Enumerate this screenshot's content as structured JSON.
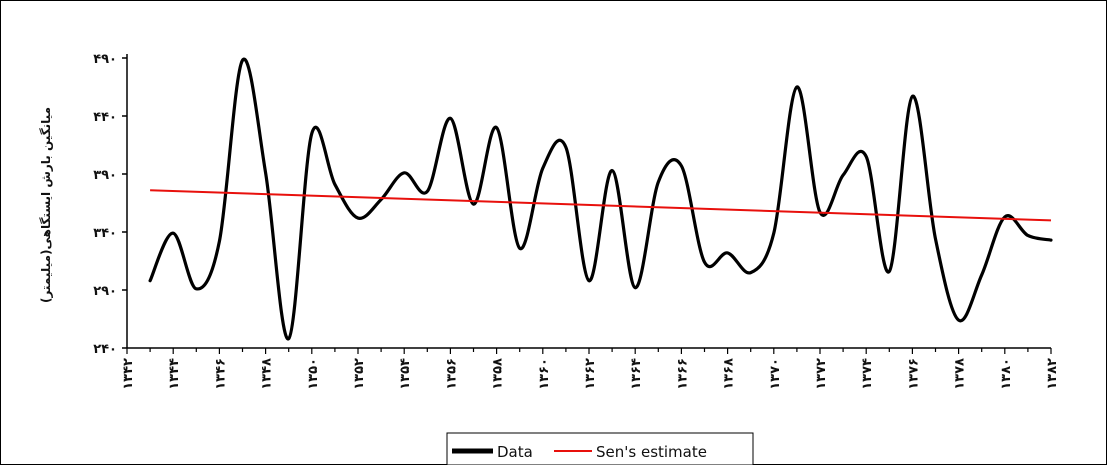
{
  "chart_data": {
    "type": "line",
    "ylabel": "میانگین بارش ایستگاهی(میلیمتر)",
    "ylim": [
      240,
      490
    ],
    "y_ticks": [
      "۲۴۰",
      "۲۹۰",
      "۳۴۰",
      "۳۹۰",
      "۴۴۰",
      "۴۹۰"
    ],
    "y_tick_values": [
      240,
      290,
      340,
      390,
      440,
      490
    ],
    "xlim": [
      1342,
      1382
    ],
    "x_ticks": [
      "۱۳۴۲",
      "۱۳۴۴",
      "۱۳۴۶",
      "۱۳۴۸",
      "۱۳۵۰",
      "۱۳۵۲",
      "۱۳۵۴",
      "۱۳۵۶",
      "۱۳۵۸",
      "۱۳۶۰",
      "۱۳۶۲",
      "۱۳۶۴",
      "۱۳۶۶",
      "۱۳۶۸",
      "۱۳۷۰",
      "۱۳۷۲",
      "۱۳۷۴",
      "۱۳۷۶",
      "۱۳۷۸",
      "۱۳۸۰",
      "۱۳۸۲"
    ],
    "x_tick_values": [
      1342,
      1344,
      1346,
      1348,
      1350,
      1352,
      1354,
      1356,
      1358,
      1360,
      1362,
      1364,
      1366,
      1368,
      1370,
      1372,
      1374,
      1376,
      1378,
      1380,
      1382
    ],
    "grid": false,
    "legend_position": "bottom-center",
    "series": [
      {
        "name": "Data",
        "color": "#000000",
        "x": [
          1343,
          1344,
          1345,
          1346,
          1347,
          1348,
          1349,
          1350,
          1351,
          1352,
          1353,
          1354,
          1355,
          1356,
          1357,
          1358,
          1359,
          1360,
          1361,
          1362,
          1363,
          1364,
          1365,
          1366,
          1367,
          1368,
          1369,
          1370,
          1371,
          1372,
          1373,
          1374,
          1375,
          1376,
          1377,
          1378,
          1379,
          1380,
          1381,
          1382
        ],
        "y": [
          298,
          339,
          291,
          332,
          488,
          391,
          248,
          425,
          381,
          352,
          368,
          391,
          375,
          438,
          364,
          430,
          326,
          395,
          413,
          298,
          393,
          292,
          383,
          397,
          314,
          322,
          305,
          339,
          465,
          357,
          389,
          405,
          306,
          457,
          334,
          264,
          303,
          353,
          337,
          333
        ]
      },
      {
        "name": "Sen's estimate",
        "color": "#e8100c",
        "x": [
          1343,
          1382
        ],
        "y": [
          376,
          350
        ]
      }
    ]
  }
}
